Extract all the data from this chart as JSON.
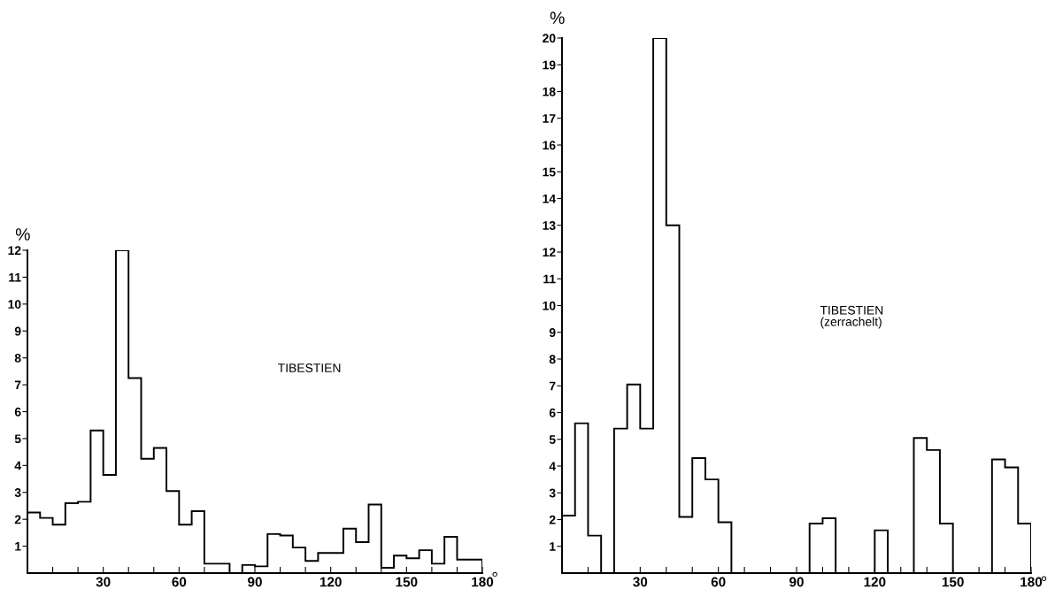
{
  "chart_data": [
    {
      "type": "histogram",
      "ylabel": "%",
      "xlabel": "°",
      "annotations": [
        "TIBESTIEN"
      ],
      "color": "#000000",
      "bins": [
        0,
        5,
        10,
        15,
        20,
        25,
        30,
        35,
        40,
        45,
        50,
        55,
        60,
        65,
        70,
        75,
        80,
        85,
        90,
        95,
        100,
        105,
        110,
        115,
        120,
        125,
        130,
        135,
        140,
        145,
        150,
        155,
        160,
        165,
        170,
        175,
        180
      ],
      "values": [
        2.25,
        2.05,
        1.8,
        2.6,
        2.65,
        5.3,
        3.65,
        12,
        7.25,
        4.25,
        4.65,
        3.05,
        1.8,
        2.3,
        0.35,
        0.35,
        0,
        0.3,
        0.25,
        1.45,
        1.4,
        0.95,
        0.45,
        0.75,
        0.75,
        1.65,
        1.15,
        2.55,
        0.2,
        0.65,
        0.55,
        0.85,
        0.35,
        1.35,
        0.5,
        0.5
      ],
      "xlim": [
        0,
        180
      ],
      "ylim": [
        0,
        12
      ],
      "xticks": [
        {
          "value": 10,
          "label": null
        },
        {
          "value": 20,
          "label": null
        },
        30,
        {
          "value": 40,
          "label": null
        },
        {
          "value": 50,
          "label": null
        },
        60,
        {
          "value": 70,
          "label": null
        },
        {
          "value": 80,
          "label": null
        },
        90,
        {
          "value": 100,
          "label": null
        },
        {
          "value": 110,
          "label": null
        },
        120,
        {
          "value": 130,
          "label": null
        },
        {
          "value": 140,
          "label": null
        },
        150,
        {
          "value": 160,
          "label": null
        },
        {
          "value": 170,
          "label": null
        },
        180
      ],
      "yticks": [
        1,
        2,
        3,
        4,
        5,
        6,
        7,
        8,
        9,
        10,
        11,
        12
      ],
      "grid": false,
      "legend": false
    },
    {
      "type": "histogram",
      "ylabel": "%",
      "xlabel": "°",
      "annotations": [
        "TIBESTIEN\n(zerrachelt)"
      ],
      "color": "#000000",
      "bins": [
        0,
        5,
        10,
        15,
        20,
        25,
        30,
        35,
        40,
        45,
        50,
        55,
        60,
        65,
        70,
        75,
        80,
        85,
        90,
        95,
        100,
        105,
        110,
        115,
        120,
        125,
        130,
        135,
        140,
        145,
        150,
        155,
        160,
        165,
        170,
        175,
        180
      ],
      "values": [
        2.15,
        5.6,
        1.4,
        0,
        5.4,
        7.05,
        5.4,
        20,
        13,
        2.1,
        4.3,
        3.5,
        1.9,
        0,
        0,
        0,
        0,
        0,
        0,
        1.85,
        2.05,
        0,
        0,
        0,
        1.6,
        0,
        0,
        5.05,
        4.6,
        1.85,
        0,
        0,
        0,
        4.25,
        3.95,
        1.85
      ],
      "xlim": [
        0,
        180
      ],
      "ylim": [
        0,
        20
      ],
      "xticks": [
        {
          "value": 10,
          "label": null
        },
        {
          "value": 20,
          "label": null
        },
        30,
        {
          "value": 40,
          "label": null
        },
        {
          "value": 50,
          "label": null
        },
        60,
        {
          "value": 70,
          "label": null
        },
        {
          "value": 80,
          "label": null
        },
        90,
        {
          "value": 100,
          "label": null
        },
        {
          "value": 110,
          "label": null
        },
        120,
        {
          "value": 130,
          "label": null
        },
        {
          "value": 140,
          "label": null
        },
        150,
        {
          "value": 160,
          "label": null
        },
        {
          "value": 170,
          "label": null
        },
        180
      ],
      "yticks": [
        1,
        2,
        3,
        4,
        5,
        6,
        7,
        8,
        9,
        10,
        11,
        12,
        13,
        14,
        15,
        16,
        17,
        18,
        19,
        20
      ],
      "grid": false,
      "legend": false
    }
  ]
}
